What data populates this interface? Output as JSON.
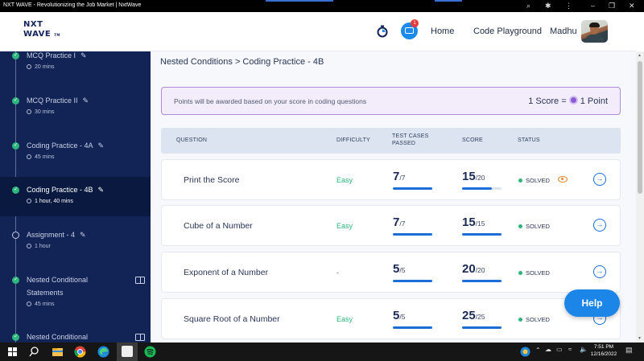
{
  "browser": {
    "title": "NXT WAVE - Revolutionizing the Job Market | NxtWave"
  },
  "header": {
    "logo_line1": "NXT",
    "logo_line2": "WAVE",
    "logo_tm": "TM",
    "notification_count": "1",
    "nav": [
      "Home",
      "Code Playground",
      "Madhu"
    ]
  },
  "sidebar": {
    "items": [
      {
        "title": "MCQ Practice I",
        "meta": "20 mins",
        "state": "done"
      },
      {
        "title": "MCQ Practice II",
        "meta": "30 mins",
        "state": "done"
      },
      {
        "title": "Coding Practice - 4A",
        "meta": "45 mins",
        "state": "done"
      },
      {
        "title": "Coding Practice - 4B",
        "meta": "1 hour, 40 mins",
        "state": "active"
      },
      {
        "title": "Assignment - 4",
        "meta": "1 hour",
        "state": "open"
      },
      {
        "title_line1": "Nested Conditional",
        "title_line2": "Statements",
        "meta": "45 mins",
        "state": "done"
      },
      {
        "title": "Nested Conditional",
        "state": "done"
      }
    ]
  },
  "main": {
    "breadcrumb": "Nested Conditions > Coding Practice - 4B",
    "info_message": "Points will be awarded based on your score in coding questions",
    "score_left": "1 Score =",
    "score_right": "1 Point",
    "columns": {
      "question": "QUESTION",
      "difficulty": "DIFFICULTY",
      "test_cases_1": "TEST CASES",
      "test_cases_2": "PASSED",
      "score": "SCORE",
      "status": "STATUS"
    },
    "rows": [
      {
        "question": "Print the Score",
        "difficulty": "Easy",
        "tc_passed": "7",
        "tc_total": "/7",
        "tc_fraction": 1.0,
        "score": "15",
        "score_total": "/20",
        "score_fraction": 0.75,
        "status": "SOLVED",
        "has_eye": true
      },
      {
        "question": "Cube of a Number",
        "difficulty": "Easy",
        "tc_passed": "7",
        "tc_total": "/7",
        "tc_fraction": 1.0,
        "score": "15",
        "score_total": "/15",
        "score_fraction": 1.0,
        "status": "SOLVED",
        "has_eye": false
      },
      {
        "question": "Exponent of a Number",
        "difficulty": "-",
        "tc_passed": "5",
        "tc_total": "/5",
        "tc_fraction": 1.0,
        "score": "20",
        "score_total": "/20",
        "score_fraction": 1.0,
        "status": "SOLVED",
        "has_eye": false
      },
      {
        "question": "Square Root of a Number",
        "difficulty": "Easy",
        "tc_passed": "5",
        "tc_total": "/5",
        "tc_fraction": 1.0,
        "score": "25",
        "score_total": "/25",
        "score_fraction": 1.0,
        "status": "SOLVED",
        "has_eye": false
      }
    ],
    "help_label": "Help"
  },
  "taskbar": {
    "time": "7:51 PM",
    "date": "12/16/2022"
  },
  "colors": {
    "sidebar_bg": "#122355",
    "accent_blue": "#1c6ed6",
    "easy_green": "#2eb67d",
    "solved_green": "#2eb67d"
  }
}
